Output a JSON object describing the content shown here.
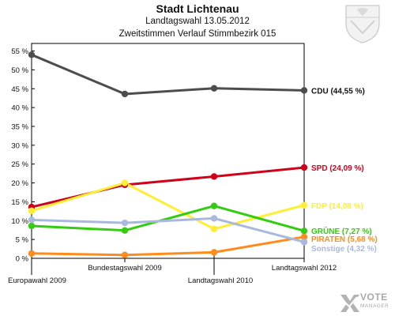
{
  "header": {
    "title": "Stadt Lichtenau",
    "subtitle": "Landtagswahl 13.05.2012",
    "subtitle2": "Zweitstimmen Verlauf Stimmbezirk 015"
  },
  "branding": {
    "crest_icon": "coat-of-arms-icon",
    "logo_icon": "vote-manager-logo-icon",
    "logo_word1": "VOTE",
    "logo_word2": "MANAGER"
  },
  "chart_data": {
    "type": "line",
    "title": "Zweitstimmen Verlauf Stimmbezirk 015",
    "x": [
      "Europawahl 2009",
      "Bundestagswahl 2009",
      "Landtagswahl 2010",
      "Landtagswahl 2012"
    ],
    "ylim": [
      0,
      57
    ],
    "yticks": [
      0,
      5,
      10,
      15,
      20,
      25,
      30,
      35,
      40,
      45,
      50,
      55
    ],
    "ytick_labels": [
      "0 %",
      "5 %",
      "10 %",
      "15 %",
      "20 %",
      "25 %",
      "30 %",
      "35 %",
      "40 %",
      "45 %",
      "50 %",
      "55 %"
    ],
    "grid": false,
    "series": [
      {
        "name": "CDU",
        "end_label": "CDU (44,55 %)",
        "color": "#4d4d4d",
        "values": [
          54.0,
          43.6,
          45.1,
          44.55
        ]
      },
      {
        "name": "SPD",
        "end_label": "SPD (24,09 %)",
        "color": "#d0021b",
        "values": [
          13.6,
          19.5,
          21.7,
          24.09
        ]
      },
      {
        "name": "FDP",
        "end_label": "FDP (14,08 %)",
        "color": "#ffee33",
        "values": [
          12.6,
          20.0,
          7.8,
          14.08
        ]
      },
      {
        "name": "GRÜNE",
        "end_label": "GRÜNE (7,27 %)",
        "color": "#33cc11",
        "values": [
          8.6,
          7.4,
          13.9,
          7.27
        ]
      },
      {
        "name": "PIRATEN",
        "end_label": "PIRATEN (5,68 %)",
        "color": "#ff8c1a",
        "values": [
          1.3,
          0.9,
          1.6,
          5.68
        ]
      },
      {
        "name": "Sonstige",
        "end_label": "Sonstige (4,32 %)",
        "color": "#a9b9dd",
        "values": [
          10.2,
          9.4,
          10.6,
          4.32
        ]
      }
    ]
  }
}
